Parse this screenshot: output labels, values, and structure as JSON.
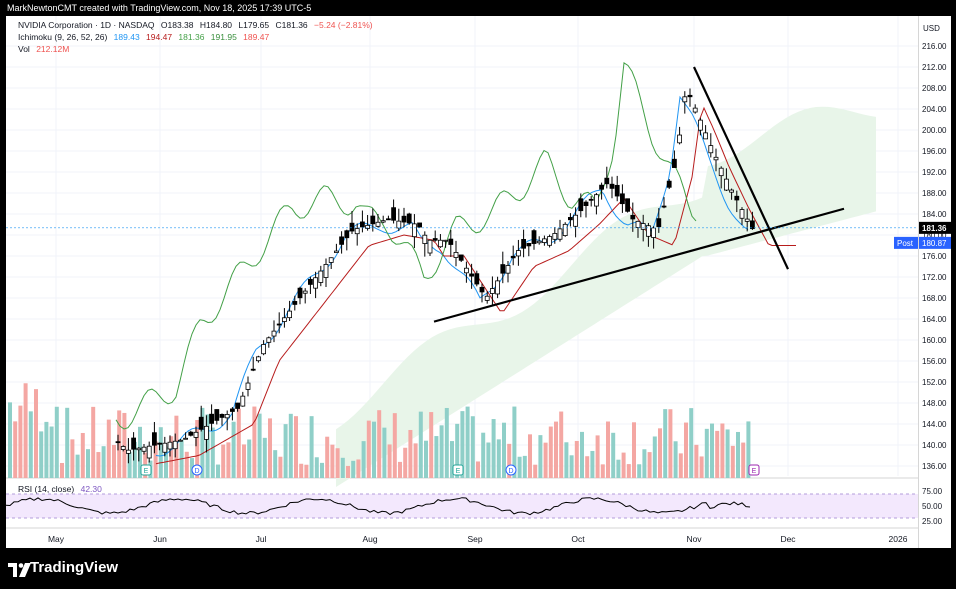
{
  "header": {
    "attribution": "MarkNewtonCMT created with TradingView.com, Nov 18, 2025 17:39 UTC-5"
  },
  "symbol": {
    "name": "NVIDIA Corporation · 1D · NASDAQ",
    "open_label": "O",
    "open": "183.38",
    "high_label": "H",
    "high": "184.80",
    "low_label": "L",
    "low": "179.65",
    "close_label": "C",
    "close": "181.36",
    "change": "−5.24 (−2.81%)"
  },
  "ichimoku": {
    "label": "Ichimoku (9, 26, 52, 26)",
    "values": [
      "189.43",
      "194.47",
      "181.36",
      "191.95",
      "189.47"
    ],
    "colors": [
      "#2196f3",
      "#b71c1c",
      "#43a047",
      "#388e3c",
      "#ef5350"
    ]
  },
  "volume": {
    "label": "Vol",
    "value": "212.12M"
  },
  "currency": "USD",
  "price_badge": {
    "value": "181.36"
  },
  "post_badge": {
    "label": "Post",
    "value": "180.87"
  },
  "rsi": {
    "label": "RSI (14, close)",
    "value": "42.30",
    "ticks": [
      "75.00",
      "50.00",
      "25.00"
    ]
  },
  "brand": {
    "name": "TradingView"
  },
  "colors": {
    "up": "#26a69a",
    "down": "#ef5350",
    "vol_up": "#8fcfc8",
    "vol_down": "#f4a7a3",
    "cloud": "#e8f5e9",
    "rsi_band": "#f3e8fd",
    "rsi_line": "#7e57c2"
  },
  "chart_data": {
    "type": "candlestick",
    "y_axis": {
      "ylim": [
        134,
        218
      ],
      "ticks": [
        136,
        140,
        144,
        148,
        152,
        156,
        160,
        164,
        168,
        172,
        176,
        180,
        184,
        188,
        192,
        196,
        200,
        204,
        208,
        212,
        216
      ]
    },
    "x_axis": {
      "ticks": [
        "May",
        "Jun",
        "Jul",
        "Aug",
        "Sep",
        "Oct",
        "Nov",
        "Dec",
        "2026"
      ]
    },
    "events": [
      {
        "letter": "E",
        "kind": "earnings",
        "month": "Jun"
      },
      {
        "letter": "D",
        "kind": "dividend",
        "month": "Jun"
      },
      {
        "letter": "E",
        "kind": "earnings",
        "month": "Sep"
      },
      {
        "letter": "D",
        "kind": "dividend",
        "month": "Sep"
      },
      {
        "letter": "E",
        "kind": "earnings",
        "month": "Nov"
      }
    ],
    "trendlines": [
      {
        "from": [
          "Aug",
          163.5
        ],
        "to": [
          "Dec",
          185
        ]
      },
      {
        "from": [
          "Nov",
          212
        ],
        "to": [
          "Dec",
          173.5
        ]
      }
    ]
  }
}
